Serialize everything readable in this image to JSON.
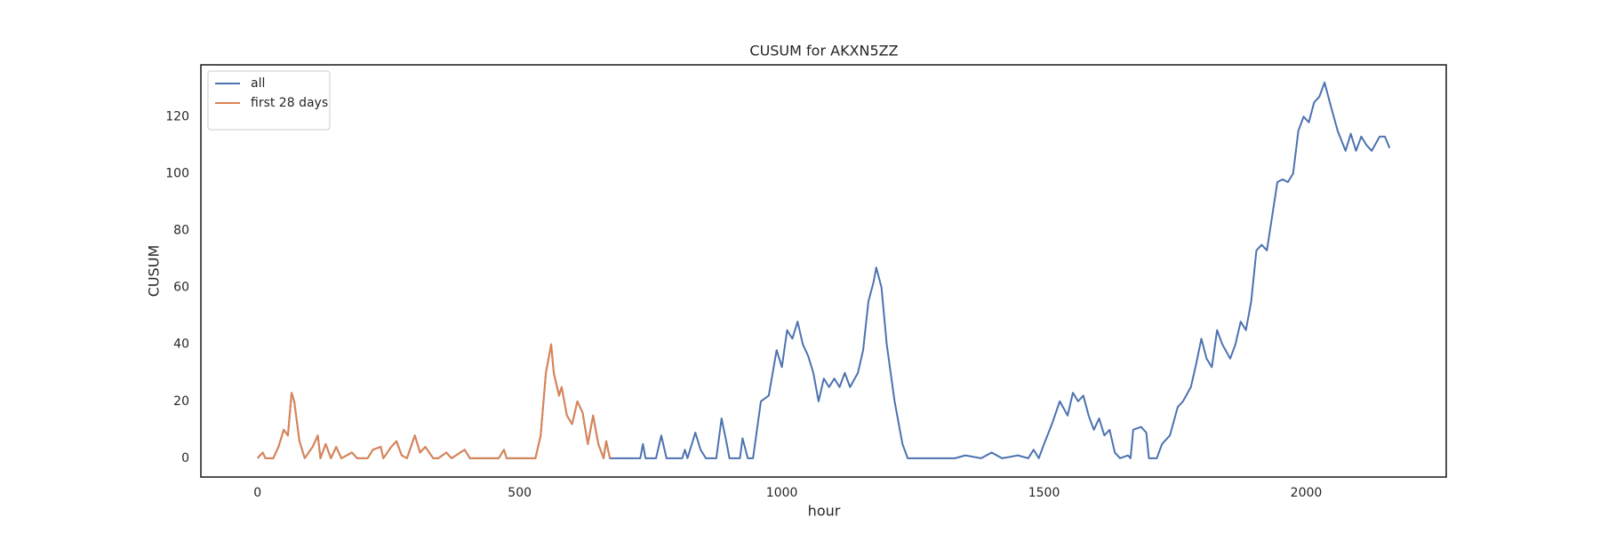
{
  "chart_data": {
    "type": "line",
    "title": "CUSUM for AKXN5ZZ",
    "xlabel": "hour",
    "ylabel": "CUSUM",
    "xlim": [
      -108,
      2267
    ],
    "ylim": [
      -6.6,
      138.2
    ],
    "xticks": [
      0,
      500,
      1000,
      1500,
      2000
    ],
    "yticks": [
      0,
      20,
      40,
      60,
      80,
      100,
      120
    ],
    "grid": false,
    "legend": "upper left",
    "series": [
      {
        "name": "all",
        "color": "#4c72b0",
        "x": [
          0,
          10,
          15,
          30,
          40,
          50,
          58,
          65,
          70,
          80,
          90,
          105,
          115,
          120,
          130,
          140,
          150,
          160,
          180,
          190,
          210,
          220,
          235,
          240,
          255,
          265,
          275,
          285,
          300,
          310,
          320,
          335,
          345,
          360,
          370,
          395,
          405,
          460,
          470,
          475,
          510,
          530,
          540,
          550,
          560,
          565,
          575,
          580,
          590,
          600,
          610,
          620,
          630,
          640,
          650,
          660,
          665,
          672,
          680,
          730,
          735,
          740,
          760,
          770,
          780,
          810,
          815,
          820,
          835,
          845,
          855,
          875,
          885,
          895,
          900,
          920,
          925,
          935,
          945,
          960,
          975,
          990,
          1000,
          1010,
          1020,
          1030,
          1040,
          1050,
          1060,
          1070,
          1080,
          1090,
          1100,
          1110,
          1120,
          1130,
          1145,
          1155,
          1165,
          1175,
          1180,
          1190,
          1200,
          1215,
          1230,
          1240,
          1300,
          1330,
          1350,
          1380,
          1400,
          1420,
          1450,
          1470,
          1480,
          1490,
          1500,
          1515,
          1530,
          1545,
          1555,
          1565,
          1575,
          1585,
          1595,
          1605,
          1615,
          1625,
          1635,
          1645,
          1660,
          1665,
          1670,
          1685,
          1695,
          1700,
          1715,
          1725,
          1740,
          1755,
          1765,
          1780,
          1790,
          1800,
          1810,
          1820,
          1830,
          1840,
          1855,
          1865,
          1875,
          1885,
          1895,
          1905,
          1915,
          1925,
          1935,
          1945,
          1955,
          1965,
          1975,
          1985,
          1995,
          2005,
          2015,
          2025,
          2035,
          2045,
          2060,
          2075,
          2085,
          2095,
          2105,
          2115,
          2125,
          2140,
          2150,
          2159
        ],
        "values": [
          0,
          2,
          0,
          0,
          4,
          10,
          8,
          23,
          20,
          6,
          0,
          4,
          8,
          0,
          5,
          0,
          4,
          0,
          2,
          0,
          0,
          3,
          4,
          0,
          4,
          6,
          1,
          0,
          8,
          2,
          4,
          0,
          0,
          2,
          0,
          3,
          0,
          0,
          3,
          0,
          0,
          0,
          8,
          30,
          40,
          30,
          22,
          25,
          15,
          12,
          20,
          16,
          5,
          15,
          5,
          0,
          6,
          0,
          0,
          0,
          5,
          0,
          0,
          8,
          0,
          0,
          3,
          0,
          9,
          3,
          0,
          0,
          14,
          5,
          0,
          0,
          7,
          0,
          0,
          20,
          22,
          38,
          32,
          45,
          42,
          48,
          40,
          36,
          30,
          20,
          28,
          25,
          28,
          25,
          30,
          25,
          30,
          38,
          55,
          62,
          67,
          60,
          40,
          20,
          5,
          0,
          0,
          0,
          1,
          0,
          2,
          0,
          1,
          0,
          3,
          0,
          5,
          12,
          20,
          15,
          23,
          20,
          22,
          15,
          10,
          14,
          8,
          10,
          2,
          0,
          1,
          0,
          10,
          11,
          9,
          0,
          0,
          5,
          8,
          18,
          20,
          25,
          33,
          42,
          35,
          32,
          45,
          40,
          35,
          40,
          48,
          45,
          55,
          73,
          75,
          73,
          85,
          97,
          98,
          97,
          100,
          115,
          120,
          118,
          125,
          127,
          132,
          125,
          115,
          108,
          114,
          108,
          113,
          110,
          108,
          113,
          113,
          109
        ]
      },
      {
        "name": "first 28 days",
        "color": "#dd8452",
        "x": [
          0,
          10,
          15,
          30,
          40,
          50,
          58,
          65,
          70,
          80,
          90,
          105,
          115,
          120,
          130,
          140,
          150,
          160,
          180,
          190,
          210,
          220,
          235,
          240,
          255,
          265,
          275,
          285,
          300,
          310,
          320,
          335,
          345,
          360,
          370,
          395,
          405,
          460,
          470,
          475,
          510,
          530,
          540,
          550,
          560,
          565,
          575,
          580,
          590,
          600,
          610,
          620,
          630,
          640,
          650,
          660,
          665,
          672
        ],
        "values": [
          0,
          2,
          0,
          0,
          4,
          10,
          8,
          23,
          20,
          6,
          0,
          4,
          8,
          0,
          5,
          0,
          4,
          0,
          2,
          0,
          0,
          3,
          4,
          0,
          4,
          6,
          1,
          0,
          8,
          2,
          4,
          0,
          0,
          2,
          0,
          3,
          0,
          0,
          3,
          0,
          0,
          0,
          8,
          30,
          40,
          30,
          22,
          25,
          15,
          12,
          20,
          16,
          5,
          15,
          5,
          0,
          6,
          0
        ]
      }
    ]
  }
}
